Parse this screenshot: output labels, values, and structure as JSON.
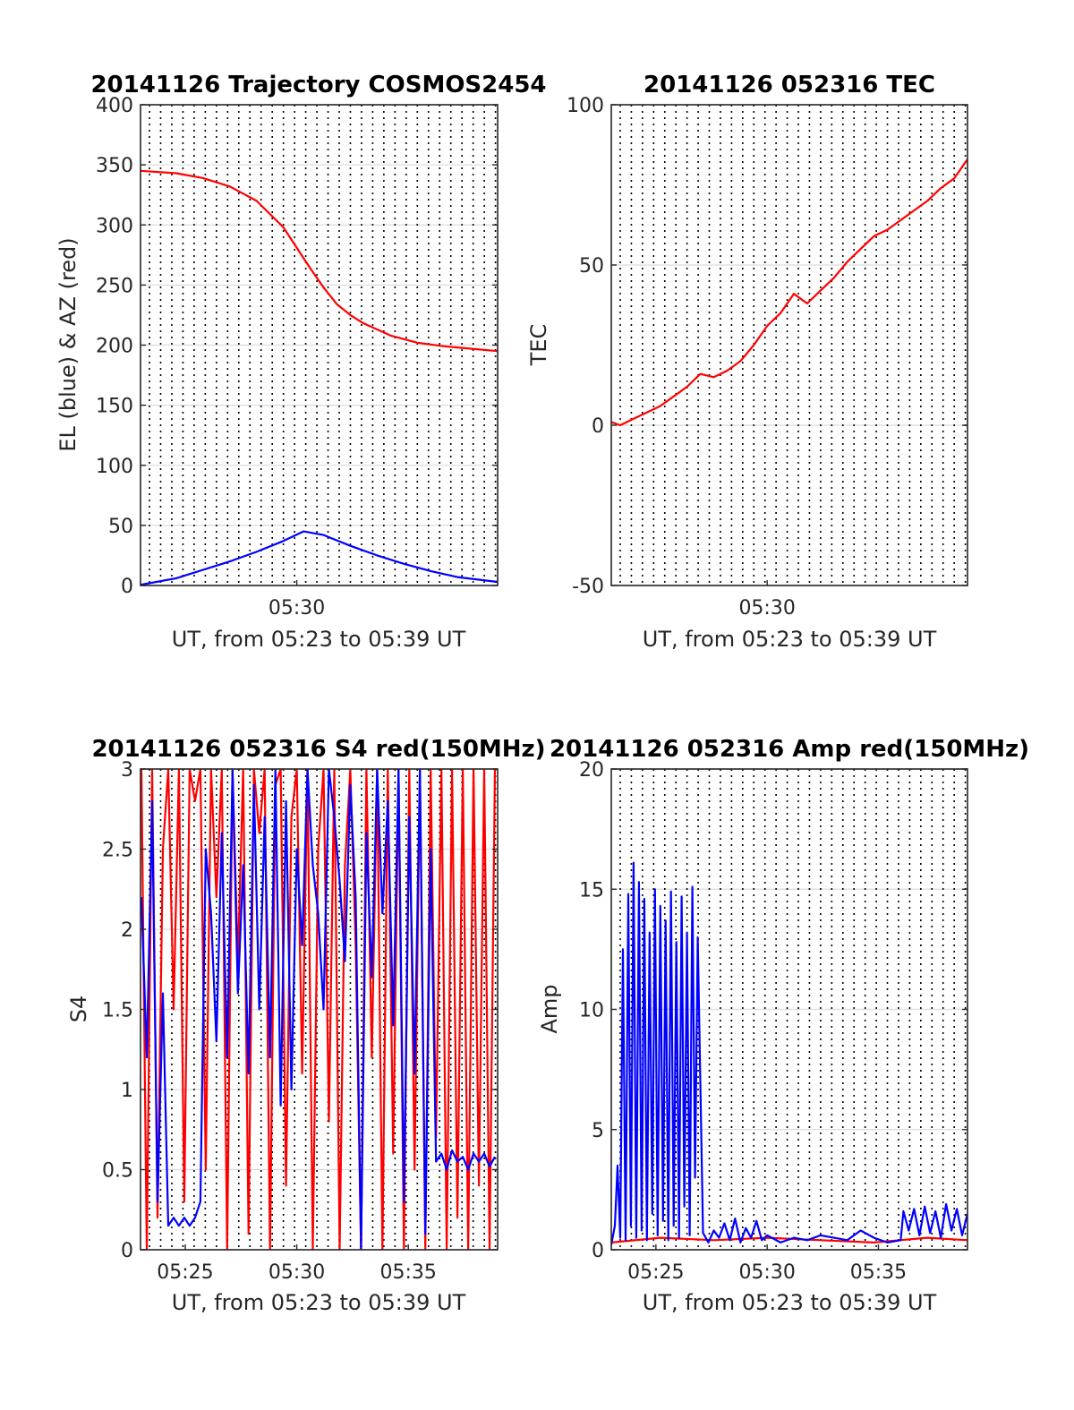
{
  "chart_data": [
    {
      "type": "line",
      "title": "20141126 Trajectory COSMOS2454",
      "xlabel": "UT, from 05:23 to 05:39 UT",
      "ylabel": "EL (blue) & AZ (red)",
      "xlim": [
        5.3833,
        5.65
      ],
      "ylim": [
        0,
        400
      ],
      "yticks": [
        0,
        50,
        100,
        150,
        200,
        250,
        300,
        350,
        400
      ],
      "yticklabels": [
        "0",
        "50",
        "100",
        "150",
        "200",
        "250",
        "300",
        "350",
        "400"
      ],
      "xticks": [
        5.5
      ],
      "xticklabels": [
        "05:30"
      ],
      "grid": true,
      "series": [
        {
          "color": "#ff0000",
          "x": [
            5.3833,
            5.41,
            5.43,
            5.45,
            5.47,
            5.49,
            5.51,
            5.52,
            5.53,
            5.54,
            5.55,
            5.57,
            5.59,
            5.61,
            5.63,
            5.65
          ],
          "y": [
            345,
            343,
            339,
            332,
            320,
            298,
            264,
            248,
            234,
            225,
            218,
            208,
            202,
            199,
            197,
            195
          ]
        },
        {
          "color": "#0000ff",
          "x": [
            5.3833,
            5.41,
            5.43,
            5.45,
            5.47,
            5.49,
            5.505,
            5.52,
            5.54,
            5.56,
            5.58,
            5.6,
            5.62,
            5.65
          ],
          "y": [
            0.5,
            6,
            13,
            20,
            28,
            37,
            45,
            42,
            33,
            25,
            18,
            12,
            7,
            3
          ]
        }
      ]
    },
    {
      "type": "line",
      "title": "20141126 052316 TEC",
      "xlabel": "UT, from 05:23 to 05:39 UT",
      "ylabel": "TEC",
      "xlim": [
        5.3833,
        5.65
      ],
      "ylim": [
        -50,
        100
      ],
      "yticks": [
        -50,
        0,
        50,
        100
      ],
      "yticklabels": [
        "-50",
        "0",
        "50",
        "100"
      ],
      "xticks": [
        5.5
      ],
      "xticklabels": [
        "05:30"
      ],
      "grid": true,
      "series": [
        {
          "color": "#ff0000",
          "x": [
            5.3833,
            5.39,
            5.4,
            5.41,
            5.42,
            5.43,
            5.44,
            5.45,
            5.46,
            5.47,
            5.48,
            5.49,
            5.5,
            5.51,
            5.52,
            5.53,
            5.54,
            5.55,
            5.56,
            5.57,
            5.58,
            5.59,
            5.6,
            5.61,
            5.62,
            5.63,
            5.64,
            5.65
          ],
          "y": [
            1,
            0,
            2,
            4,
            6,
            9,
            12,
            16,
            15,
            17,
            20,
            25,
            31,
            35,
            41,
            38,
            42,
            46,
            51,
            55,
            59,
            61,
            64,
            67,
            70,
            74,
            77,
            83
          ]
        }
      ]
    },
    {
      "type": "line",
      "title": "20141126 052316 S4 red(150MHz)",
      "xlabel": "UT, from 05:23 to 05:39 UT",
      "ylabel": "S4",
      "xlim": [
        5.3833,
        5.65
      ],
      "ylim": [
        0,
        3
      ],
      "yticks": [
        0,
        0.5,
        1,
        1.5,
        2,
        2.5,
        3
      ],
      "yticklabels": [
        "0",
        "0.5",
        "1",
        "1.5",
        "2",
        "2.5",
        "3"
      ],
      "xticks": [
        5.4167,
        5.5,
        5.5833
      ],
      "xticklabels": [
        "05:25",
        "05:30",
        "05:35"
      ],
      "grid": true,
      "series": [
        {
          "color": "#ff0000",
          "x": [
            5.384,
            5.388,
            5.392,
            5.396,
            5.4,
            5.404,
            5.408,
            5.412,
            5.416,
            5.42,
            5.424,
            5.428,
            5.432,
            5.436,
            5.44,
            5.444,
            5.448,
            5.452,
            5.456,
            5.46,
            5.464,
            5.468,
            5.472,
            5.476,
            5.48,
            5.484,
            5.488,
            5.492,
            5.496,
            5.5,
            5.504,
            5.508,
            5.512,
            5.516,
            5.52,
            5.524,
            5.528,
            5.532,
            5.536,
            5.54,
            5.544,
            5.548,
            5.552,
            5.556,
            5.56,
            5.564,
            5.568,
            5.572,
            5.576,
            5.58,
            5.584,
            5.588,
            5.592,
            5.596,
            5.6,
            5.604,
            5.608,
            5.612,
            5.616,
            5.62,
            5.624,
            5.628,
            5.632,
            5.636,
            5.64,
            5.644,
            5.648
          ],
          "y": [
            3,
            0,
            3,
            0.2,
            2.5,
            3,
            1.5,
            3,
            0.3,
            3,
            2.8,
            3,
            0.5,
            3,
            2.2,
            3,
            0,
            3,
            1.8,
            3,
            0.1,
            3,
            2.6,
            3,
            0,
            2.9,
            3,
            0.4,
            2.7,
            3,
            1.1,
            3,
            0,
            2.5,
            3,
            0.8,
            3,
            0,
            2.4,
            3,
            1.9,
            0,
            3,
            1.2,
            3,
            0,
            3,
            0.6,
            3,
            0,
            3,
            0.5,
            3,
            0,
            3,
            0.7,
            3,
            0,
            3,
            0.2,
            3,
            0,
            3,
            0.4,
            3,
            0,
            3
          ]
        },
        {
          "color": "#0000ff",
          "x": [
            5.384,
            5.388,
            5.392,
            5.396,
            5.4,
            5.404,
            5.408,
            5.412,
            5.416,
            5.42,
            5.424,
            5.428,
            5.432,
            5.436,
            5.44,
            5.444,
            5.448,
            5.452,
            5.456,
            5.46,
            5.464,
            5.468,
            5.472,
            5.476,
            5.48,
            5.484,
            5.488,
            5.492,
            5.496,
            5.5,
            5.504,
            5.508,
            5.512,
            5.516,
            5.52,
            5.524,
            5.528,
            5.532,
            5.536,
            5.54,
            5.544,
            5.548,
            5.552,
            5.556,
            5.56,
            5.564,
            5.568,
            5.572,
            5.576,
            5.58,
            5.584,
            5.588,
            5.592,
            5.596,
            5.6,
            5.604,
            5.608,
            5.612,
            5.616,
            5.62,
            5.624,
            5.628,
            5.632,
            5.636,
            5.64,
            5.644,
            5.648
          ],
          "y": [
            2.2,
            1.2,
            2.8,
            0.3,
            1.6,
            0.15,
            0.2,
            0.15,
            0.2,
            0.15,
            0.2,
            0.3,
            2.5,
            2.1,
            1.3,
            2.6,
            1.2,
            3,
            1.6,
            2.4,
            1.1,
            2.9,
            1.5,
            2.7,
            1.2,
            3,
            0.9,
            2.8,
            1.0,
            2.5,
            1.9,
            3,
            2.4,
            2.1,
            1.5,
            3,
            2.7,
            2.3,
            1.8,
            2.9,
            2.2,
            0,
            2.6,
            1.7,
            3,
            2.1,
            2.8,
            1.4,
            3,
            0.3,
            2.7,
            1.1,
            3,
            0.1,
            2.5,
            0.55,
            0.6,
            0.5,
            0.62,
            0.55,
            0.58,
            0.5,
            0.6,
            0.55,
            0.6,
            0.52,
            0.58
          ]
        }
      ]
    },
    {
      "type": "line",
      "title": "20141126 052316 Amp red(150MHz)",
      "xlabel": "UT, from 05:23 to 05:39 UT",
      "ylabel": "Amp",
      "xlim": [
        5.3833,
        5.65
      ],
      "ylim": [
        0,
        20
      ],
      "yticks": [
        0,
        5,
        10,
        15,
        20
      ],
      "yticklabels": [
        "0",
        "5",
        "10",
        "15",
        "20"
      ],
      "xticks": [
        5.4167,
        5.5,
        5.5833
      ],
      "xticklabels": [
        "05:25",
        "05:30",
        "05:35"
      ],
      "grid": true,
      "series": [
        {
          "color": "#ff0000",
          "x": [
            5.3833,
            5.42,
            5.46,
            5.5,
            5.54,
            5.58,
            5.62,
            5.65
          ],
          "y": [
            0.3,
            0.5,
            0.4,
            0.5,
            0.4,
            0.3,
            0.5,
            0.4
          ]
        },
        {
          "color": "#0000ff",
          "x": [
            5.3833,
            5.386,
            5.388,
            5.39,
            5.392,
            5.394,
            5.396,
            5.398,
            5.4,
            5.402,
            5.404,
            5.406,
            5.408,
            5.41,
            5.412,
            5.414,
            5.416,
            5.418,
            5.42,
            5.422,
            5.424,
            5.426,
            5.428,
            5.43,
            5.432,
            5.434,
            5.436,
            5.438,
            5.44,
            5.442,
            5.444,
            5.446,
            5.448,
            5.452,
            5.456,
            5.46,
            5.464,
            5.468,
            5.472,
            5.476,
            5.48,
            5.484,
            5.488,
            5.492,
            5.496,
            5.5,
            5.51,
            5.52,
            5.53,
            5.54,
            5.55,
            5.56,
            5.57,
            5.58,
            5.59,
            5.6,
            5.602,
            5.606,
            5.61,
            5.614,
            5.618,
            5.622,
            5.626,
            5.63,
            5.634,
            5.638,
            5.642,
            5.646,
            5.65
          ],
          "y": [
            0.2,
            1.0,
            3.5,
            0.5,
            12.5,
            0.4,
            14.8,
            1.0,
            16.1,
            0.5,
            15.3,
            0.8,
            14.6,
            0.4,
            13.2,
            1.5,
            15.0,
            0.6,
            14.3,
            1.2,
            13.7,
            0.4,
            14.9,
            1.0,
            12.8,
            0.5,
            14.7,
            1.8,
            13.2,
            0.6,
            15.1,
            3.0,
            13.0,
            0.7,
            0.3,
            0.8,
            0.5,
            1.1,
            0.4,
            1.3,
            0.3,
            0.9,
            0.5,
            1.2,
            0.4,
            0.6,
            0.3,
            0.5,
            0.4,
            0.6,
            0.5,
            0.4,
            0.8,
            0.5,
            0.3,
            0.4,
            1.6,
            0.8,
            1.7,
            0.6,
            1.8,
            0.7,
            1.6,
            0.5,
            1.9,
            0.8,
            1.7,
            0.6,
            1.5
          ]
        }
      ]
    }
  ]
}
